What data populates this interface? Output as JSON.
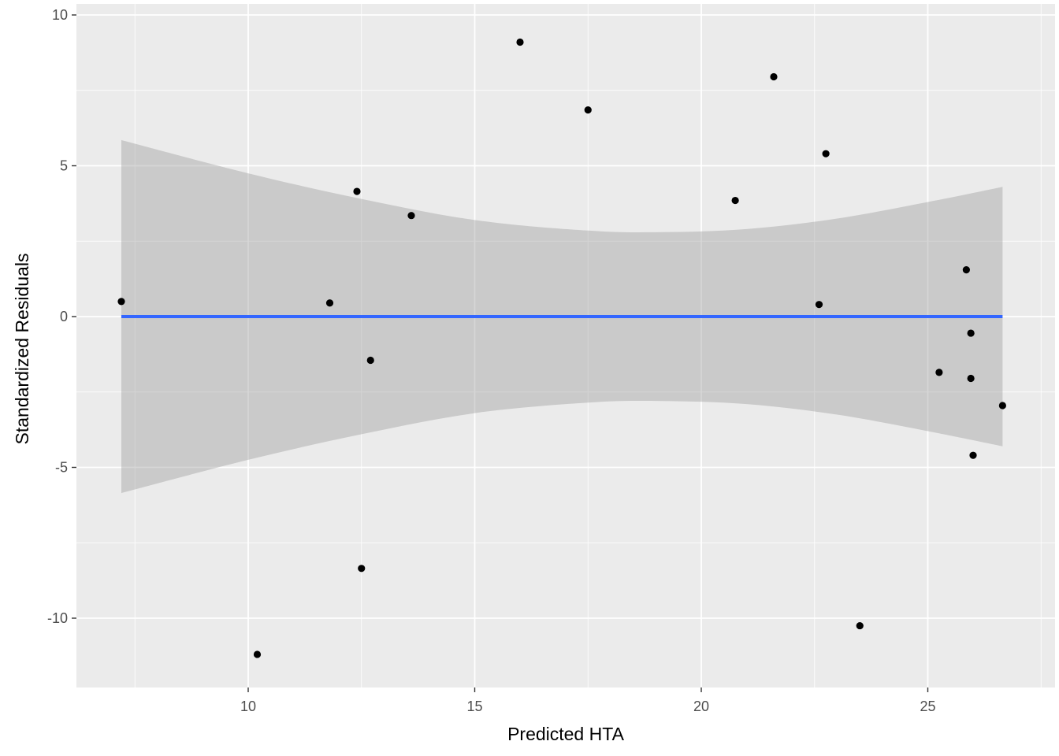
{
  "chart_data": {
    "type": "scatter",
    "title": "",
    "xlabel": "Predicted HTA",
    "ylabel": "Standardized Residuals",
    "xlim": [
      6.5,
      27.2
    ],
    "ylim": [
      -12.2,
      10.0
    ],
    "x_ticks": [
      10,
      15,
      20,
      25
    ],
    "x_tick_labels": [
      "10",
      "15",
      "20",
      "25"
    ],
    "y_ticks": [
      -10,
      -5,
      0,
      5,
      10
    ],
    "y_tick_labels": [
      "-10",
      "-5",
      "0",
      "5",
      "10"
    ],
    "grid": true,
    "legend": "none",
    "points": [
      {
        "x": 7.2,
        "y": 0.5
      },
      {
        "x": 10.2,
        "y": -11.2
      },
      {
        "x": 11.8,
        "y": 0.45
      },
      {
        "x": 12.4,
        "y": 4.15
      },
      {
        "x": 12.5,
        "y": -8.35
      },
      {
        "x": 12.7,
        "y": -1.45
      },
      {
        "x": 13.6,
        "y": 3.35
      },
      {
        "x": 16.0,
        "y": 9.1
      },
      {
        "x": 17.5,
        "y": 6.85
      },
      {
        "x": 20.75,
        "y": 3.85
      },
      {
        "x": 21.6,
        "y": 7.95
      },
      {
        "x": 22.6,
        "y": 0.4
      },
      {
        "x": 22.75,
        "y": 5.4
      },
      {
        "x": 23.5,
        "y": -10.25
      },
      {
        "x": 25.25,
        "y": -1.85
      },
      {
        "x": 25.85,
        "y": 1.55
      },
      {
        "x": 25.95,
        "y": -0.55
      },
      {
        "x": 25.95,
        "y": -2.05
      },
      {
        "x": 26.0,
        "y": -4.6
      },
      {
        "x": 26.65,
        "y": -2.95
      }
    ],
    "fit_line": {
      "x": [
        7.2,
        26.65
      ],
      "y": [
        0,
        0
      ]
    },
    "confidence_band": {
      "x": [
        7.2,
        10,
        12.5,
        15,
        17.5,
        19.15,
        21,
        23,
        25,
        26.65
      ],
      "upper": [
        5.85,
        4.75,
        3.9,
        3.2,
        2.85,
        2.8,
        2.9,
        3.25,
        3.8,
        4.3
      ],
      "lower": [
        -5.85,
        -4.75,
        -3.9,
        -3.2,
        -2.85,
        -2.8,
        -2.9,
        -3.25,
        -3.8,
        -4.3
      ]
    },
    "colors": {
      "panel_background": "#ebebeb",
      "grid": "#ffffff",
      "points": "#000000",
      "fit_line": "#3366ff",
      "band": "#999999"
    }
  }
}
